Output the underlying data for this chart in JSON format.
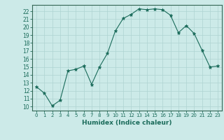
{
  "x": [
    0,
    1,
    2,
    3,
    4,
    5,
    6,
    7,
    8,
    9,
    10,
    11,
    12,
    13,
    14,
    15,
    16,
    17,
    18,
    19,
    20,
    21,
    22,
    23
  ],
  "y": [
    12.5,
    11.7,
    10.1,
    10.8,
    14.5,
    14.7,
    15.1,
    12.8,
    15.0,
    16.7,
    19.5,
    21.1,
    21.6,
    22.3,
    22.2,
    22.3,
    22.2,
    21.5,
    19.3,
    20.2,
    19.2,
    17.1,
    15.0,
    15.1
  ],
  "line_color": "#1a6b5a",
  "marker": "*",
  "marker_size": 3.5,
  "xlim": [
    -0.5,
    23.5
  ],
  "ylim": [
    9.5,
    22.8
  ],
  "yticks": [
    10,
    11,
    12,
    13,
    14,
    15,
    16,
    17,
    18,
    19,
    20,
    21,
    22
  ],
  "xticks": [
    0,
    1,
    2,
    3,
    4,
    5,
    6,
    7,
    8,
    9,
    10,
    11,
    12,
    13,
    14,
    15,
    16,
    17,
    18,
    19,
    20,
    21,
    22,
    23
  ],
  "xlabel": "Humidex (Indice chaleur)",
  "background_color": "#cceae8",
  "grid_color": "#aed4d2",
  "spine_color": "#336655",
  "tick_color": "#1a6b5a",
  "xlabel_color": "#1a6b5a"
}
